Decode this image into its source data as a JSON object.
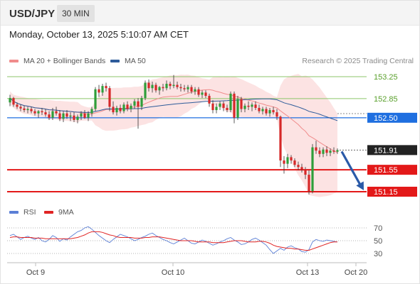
{
  "header": {
    "symbol": "USD/JPY",
    "timeframe": "30 MIN"
  },
  "timestamp": "Monday, October 13, 2025 5:10:07 AM CET",
  "legend": {
    "bollinger": {
      "label": "MA 20 + Bollinger Bands",
      "color": "#f08c8c"
    },
    "ma50": {
      "label": "MA 50",
      "color": "#2d5b9a"
    }
  },
  "credit": "Research © 2025 Trading Central",
  "rsi_legend": {
    "rsi": {
      "label": "RSI",
      "color": "#5b7fd6"
    },
    "ma9": {
      "label": "9MA",
      "color": "#e02424"
    }
  },
  "colors": {
    "up_candle": "#2f9e3a",
    "down_candle": "#d62828",
    "band_fill": "#fbd9d9",
    "resistance": "#8cc66a",
    "pivot": "#1f6fe0",
    "support": "#e31919",
    "arrow": "#2a5aa8",
    "current": "#222222"
  },
  "chart_data": [
    {
      "type": "candlestick",
      "title": "",
      "ylim": [
        150.94,
        153.38
      ],
      "x_ticks": [
        "Oct 9",
        "Oct 10",
        "Oct 13",
        "Oct 20"
      ],
      "levels": [
        {
          "value": 153.25,
          "label": "153.25",
          "kind": "resistance"
        },
        {
          "value": 152.85,
          "label": "152.85",
          "kind": "resistance"
        },
        {
          "value": 152.5,
          "label": "152.50",
          "kind": "pivot"
        },
        {
          "value": 151.91,
          "label": "151.91",
          "kind": "current"
        },
        {
          "value": 151.55,
          "label": "151.55",
          "kind": "support"
        },
        {
          "value": 151.15,
          "label": "151.15",
          "kind": "support"
        }
      ],
      "forecast": {
        "from": 151.91,
        "to": 151.15,
        "direction": "down"
      },
      "ohlc": [
        [
          152.78,
          152.92,
          152.71,
          152.86
        ],
        [
          152.86,
          152.88,
          152.7,
          152.74
        ],
        [
          152.74,
          152.78,
          152.66,
          152.7
        ],
        [
          152.7,
          152.74,
          152.62,
          152.67
        ],
        [
          152.67,
          152.72,
          152.6,
          152.64
        ],
        [
          152.64,
          152.7,
          152.58,
          152.66
        ],
        [
          152.66,
          152.7,
          152.58,
          152.62
        ],
        [
          152.62,
          152.66,
          152.54,
          152.58
        ],
        [
          152.58,
          152.64,
          152.5,
          152.62
        ],
        [
          152.62,
          152.68,
          152.55,
          152.6
        ],
        [
          152.6,
          152.66,
          152.52,
          152.56
        ],
        [
          152.56,
          152.62,
          152.46,
          152.5
        ],
        [
          152.5,
          152.68,
          152.46,
          152.62
        ],
        [
          152.62,
          152.7,
          152.54,
          152.58
        ],
        [
          152.58,
          152.64,
          152.44,
          152.48
        ],
        [
          152.48,
          152.62,
          152.42,
          152.58
        ],
        [
          152.58,
          152.64,
          152.48,
          152.52
        ],
        [
          152.52,
          152.6,
          152.44,
          152.54
        ],
        [
          152.54,
          152.6,
          152.42,
          152.46
        ],
        [
          152.46,
          152.56,
          152.4,
          152.52
        ],
        [
          152.52,
          152.62,
          152.46,
          152.58
        ],
        [
          152.58,
          152.64,
          152.48,
          152.5
        ],
        [
          152.5,
          152.62,
          152.44,
          152.58
        ],
        [
          152.58,
          152.7,
          152.52,
          152.66
        ],
        [
          152.66,
          153.06,
          152.62,
          153.02
        ],
        [
          153.02,
          153.1,
          152.88,
          152.96
        ],
        [
          152.96,
          153.12,
          152.9,
          153.08
        ],
        [
          153.08,
          153.14,
          152.98,
          153.04
        ],
        [
          153.04,
          153.08,
          152.62,
          152.7
        ],
        [
          152.7,
          152.8,
          152.56,
          152.6
        ],
        [
          152.6,
          152.72,
          152.54,
          152.68
        ],
        [
          152.68,
          152.74,
          152.58,
          152.62
        ],
        [
          152.62,
          152.78,
          152.58,
          152.74
        ],
        [
          152.74,
          152.8,
          152.62,
          152.66
        ],
        [
          152.66,
          152.76,
          152.6,
          152.72
        ],
        [
          152.72,
          152.84,
          152.66,
          152.8
        ],
        [
          152.8,
          152.86,
          152.3,
          152.7
        ],
        [
          152.7,
          152.9,
          152.64,
          152.86
        ],
        [
          152.86,
          153.18,
          152.82,
          153.14
        ],
        [
          153.14,
          153.2,
          152.98,
          153.04
        ],
        [
          153.04,
          153.16,
          152.96,
          153.1
        ],
        [
          153.1,
          153.14,
          152.96,
          153.0
        ],
        [
          153.0,
          153.08,
          152.92,
          153.06
        ],
        [
          153.06,
          153.12,
          152.98,
          153.04
        ],
        [
          153.04,
          153.18,
          153.0,
          153.12
        ],
        [
          153.12,
          153.16,
          153.02,
          153.08
        ],
        [
          153.08,
          153.28,
          153.04,
          153.1
        ],
        [
          153.1,
          153.16,
          153.02,
          153.06
        ],
        [
          153.06,
          153.12,
          152.98,
          153.04
        ],
        [
          153.04,
          153.1,
          152.98,
          153.02
        ],
        [
          153.02,
          153.1,
          152.96,
          153.06
        ],
        [
          153.06,
          153.1,
          152.94,
          152.98
        ],
        [
          152.98,
          153.06,
          152.92,
          153.02
        ],
        [
          153.02,
          153.06,
          152.88,
          152.92
        ],
        [
          152.92,
          153.0,
          152.86,
          152.96
        ],
        [
          152.96,
          153.0,
          152.86,
          152.9
        ],
        [
          152.9,
          152.94,
          152.7,
          152.76
        ],
        [
          152.76,
          152.82,
          152.58,
          152.64
        ],
        [
          152.64,
          152.76,
          152.58,
          152.7
        ],
        [
          152.7,
          152.8,
          152.64,
          152.76
        ],
        [
          152.76,
          152.8,
          152.62,
          152.68
        ],
        [
          152.68,
          152.74,
          152.6,
          152.64
        ],
        [
          152.64,
          152.98,
          152.6,
          152.94
        ],
        [
          152.94,
          152.98,
          152.4,
          152.5
        ],
        [
          152.5,
          152.9,
          152.46,
          152.84
        ],
        [
          152.84,
          152.88,
          152.6,
          152.66
        ],
        [
          152.66,
          152.76,
          152.6,
          152.72
        ],
        [
          152.72,
          152.8,
          152.64,
          152.7
        ],
        [
          152.7,
          152.78,
          152.62,
          152.74
        ],
        [
          152.74,
          152.8,
          152.64,
          152.68
        ],
        [
          152.68,
          152.74,
          152.58,
          152.62
        ],
        [
          152.62,
          152.7,
          152.56,
          152.66
        ],
        [
          152.66,
          152.7,
          152.54,
          152.58
        ],
        [
          152.58,
          152.68,
          152.52,
          152.64
        ],
        [
          152.64,
          152.7,
          152.56,
          152.6
        ],
        [
          152.6,
          152.66,
          152.46,
          152.52
        ],
        [
          152.52,
          152.54,
          151.6,
          151.72
        ],
        [
          151.72,
          151.8,
          151.48,
          151.66
        ],
        [
          151.66,
          151.84,
          151.58,
          151.78
        ],
        [
          151.78,
          151.82,
          151.66,
          151.72
        ],
        [
          151.72,
          151.76,
          151.6,
          151.64
        ],
        [
          151.64,
          151.7,
          151.54,
          151.6
        ],
        [
          151.6,
          151.66,
          151.5,
          151.56
        ],
        [
          151.56,
          151.6,
          151.38,
          151.46
        ],
        [
          151.46,
          151.54,
          151.1,
          151.16
        ],
        [
          151.16,
          152.02,
          151.12,
          151.96
        ],
        [
          151.96,
          152.08,
          151.84,
          151.9
        ],
        [
          151.9,
          151.96,
          151.78,
          151.84
        ],
        [
          151.84,
          151.96,
          151.78,
          151.92
        ],
        [
          151.92,
          151.98,
          151.8,
          151.86
        ],
        [
          151.86,
          151.94,
          151.8,
          151.9
        ],
        [
          151.9,
          151.96,
          151.84,
          151.88
        ],
        [
          151.88,
          151.94,
          151.84,
          151.91
        ]
      ]
    },
    {
      "type": "line",
      "title": "",
      "ylim": [
        20,
        80
      ],
      "y_ticks": [
        70,
        50,
        30
      ],
      "series": [
        {
          "name": "RSI",
          "values": [
            58,
            60,
            56,
            52,
            55,
            57,
            54,
            52,
            55,
            50,
            48,
            52,
            58,
            55,
            49,
            53,
            51,
            56,
            60,
            64,
            66,
            70,
            72,
            68,
            63,
            58,
            54,
            50,
            47,
            52,
            56,
            60,
            58,
            56,
            53,
            50,
            52,
            55,
            57,
            60,
            62,
            58,
            55,
            52,
            50,
            47,
            45,
            48,
            51,
            54,
            50,
            46,
            45,
            48,
            51,
            49,
            46,
            43,
            45,
            48,
            50,
            53,
            55,
            51,
            48,
            44,
            45,
            48,
            52,
            54,
            51,
            47,
            43,
            36,
            30,
            34,
            38,
            35,
            40,
            42,
            39,
            37,
            33,
            32,
            36,
            48,
            52,
            50,
            49,
            51,
            50,
            49,
            48
          ]
        },
        {
          "name": "9MA",
          "values": [
            55,
            56,
            56,
            55,
            55,
            55,
            55,
            54,
            54,
            54,
            53,
            53,
            53,
            53,
            53,
            53,
            53,
            53,
            54,
            55,
            57,
            59,
            62,
            64,
            64,
            64,
            63,
            61,
            59,
            58,
            56,
            55,
            55,
            55,
            55,
            54,
            54,
            54,
            55,
            55,
            56,
            56,
            56,
            55,
            54,
            53,
            52,
            51,
            50,
            50,
            50,
            50,
            49,
            48,
            48,
            48,
            48,
            47,
            47,
            47,
            47,
            48,
            49,
            50,
            50,
            50,
            49,
            48,
            48,
            48,
            49,
            49,
            48,
            46,
            43,
            41,
            40,
            39,
            38,
            38,
            37,
            37,
            36,
            35,
            35,
            37,
            39,
            41,
            43,
            45,
            47,
            48,
            48
          ]
        }
      ]
    }
  ]
}
